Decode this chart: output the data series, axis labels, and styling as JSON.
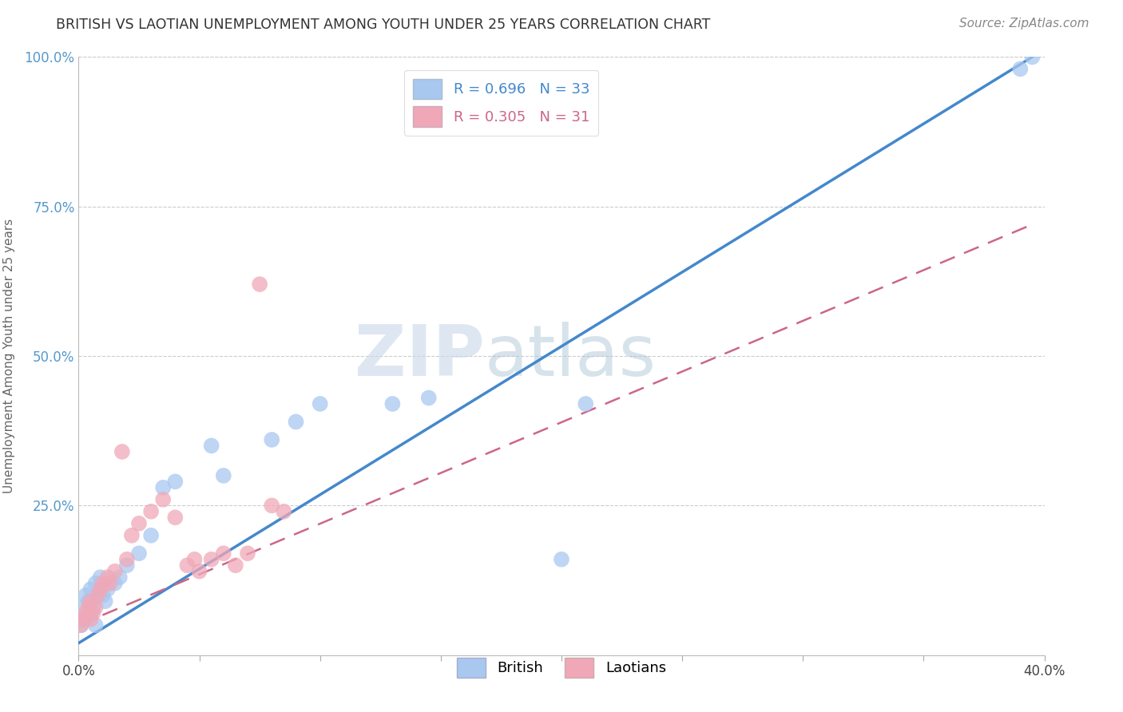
{
  "title": "BRITISH VS LAOTIAN UNEMPLOYMENT AMONG YOUTH UNDER 25 YEARS CORRELATION CHART",
  "source": "Source: ZipAtlas.com",
  "ylabel": "Unemployment Among Youth under 25 years",
  "xlim": [
    0.0,
    0.4
  ],
  "ylim": [
    0.0,
    1.0
  ],
  "british_R": 0.696,
  "british_N": 33,
  "laotian_R": 0.305,
  "laotian_N": 31,
  "british_color": "#a8c8f0",
  "laotian_color": "#f0a8b8",
  "british_line_color": "#4488cc",
  "laotian_line_color": "#cc6688",
  "watermark_color": "#c8d8e8",
  "british_x": [
    0.001,
    0.002,
    0.003,
    0.003,
    0.004,
    0.005,
    0.005,
    0.006,
    0.007,
    0.007,
    0.008,
    0.009,
    0.01,
    0.011,
    0.012,
    0.015,
    0.017,
    0.02,
    0.025,
    0.03,
    0.035,
    0.04,
    0.055,
    0.06,
    0.08,
    0.09,
    0.1,
    0.13,
    0.145,
    0.2,
    0.21,
    0.39,
    0.395
  ],
  "british_y": [
    0.05,
    0.08,
    0.06,
    0.1,
    0.09,
    0.07,
    0.11,
    0.08,
    0.05,
    0.12,
    0.1,
    0.13,
    0.1,
    0.09,
    0.11,
    0.12,
    0.13,
    0.15,
    0.17,
    0.2,
    0.28,
    0.29,
    0.35,
    0.3,
    0.36,
    0.39,
    0.42,
    0.42,
    0.43,
    0.16,
    0.42,
    0.98,
    1.0
  ],
  "laotian_x": [
    0.001,
    0.002,
    0.003,
    0.004,
    0.005,
    0.005,
    0.006,
    0.007,
    0.008,
    0.009,
    0.01,
    0.012,
    0.013,
    0.015,
    0.018,
    0.02,
    0.022,
    0.025,
    0.03,
    0.035,
    0.04,
    0.045,
    0.048,
    0.05,
    0.055,
    0.06,
    0.065,
    0.07,
    0.075,
    0.08,
    0.085
  ],
  "laotian_y": [
    0.05,
    0.06,
    0.07,
    0.08,
    0.06,
    0.09,
    0.07,
    0.08,
    0.1,
    0.11,
    0.12,
    0.13,
    0.12,
    0.14,
    0.34,
    0.16,
    0.2,
    0.22,
    0.24,
    0.26,
    0.23,
    0.15,
    0.16,
    0.14,
    0.16,
    0.17,
    0.15,
    0.17,
    0.62,
    0.25,
    0.24
  ],
  "british_line_x": [
    0.0,
    0.395
  ],
  "british_line_y": [
    0.02,
    1.0
  ],
  "laotian_line_x": [
    0.0,
    0.395
  ],
  "laotian_line_y": [
    0.05,
    0.72
  ]
}
